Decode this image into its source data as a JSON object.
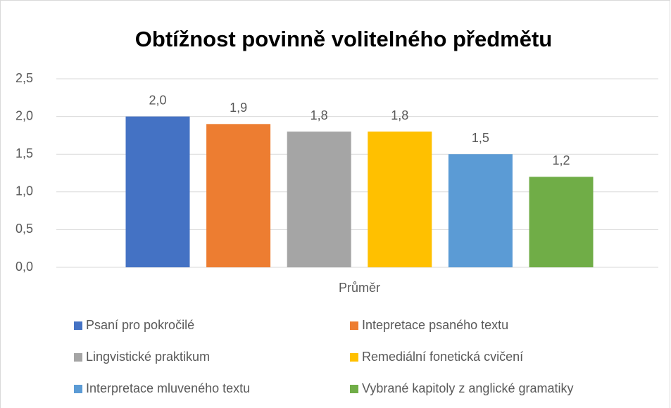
{
  "chart_data": {
    "type": "bar",
    "title": "Obtížnost povinně volitelného předmětu",
    "categories": [
      "Průměr"
    ],
    "series": [
      {
        "name": "Psaní pro pokročilé",
        "color": "#4472c4",
        "values": [
          2.0
        ],
        "value_labels": [
          "2,0"
        ]
      },
      {
        "name": "Intepretace psaného textu",
        "color": "#ed7d31",
        "values": [
          1.9
        ],
        "value_labels": [
          "1,9"
        ]
      },
      {
        "name": "Lingvistické praktikum",
        "color": "#a5a5a5",
        "values": [
          1.8
        ],
        "value_labels": [
          "1,8"
        ]
      },
      {
        "name": "Remediální fonetická cvičení",
        "color": "#ffc000",
        "values": [
          1.8
        ],
        "value_labels": [
          "1,8"
        ]
      },
      {
        "name": "Interpretace mluveného textu",
        "color": "#5b9bd5",
        "values": [
          1.5
        ],
        "value_labels": [
          "1,5"
        ]
      },
      {
        "name": "Vybrané kapitoly z anglické gramatiky",
        "color": "#70ad47",
        "values": [
          1.2
        ],
        "value_labels": [
          "1,2"
        ]
      }
    ],
    "ylim": [
      0,
      2.5
    ],
    "yticks": [
      {
        "value": 0,
        "label": "0,0"
      },
      {
        "value": 0.5,
        "label": "0,5"
      },
      {
        "value": 1.0,
        "label": "1,0"
      },
      {
        "value": 1.5,
        "label": "1,5"
      },
      {
        "value": 2.0,
        "label": "2,0"
      },
      {
        "value": 2.5,
        "label": "2,5"
      }
    ],
    "grid": true,
    "legend": "bottom"
  }
}
